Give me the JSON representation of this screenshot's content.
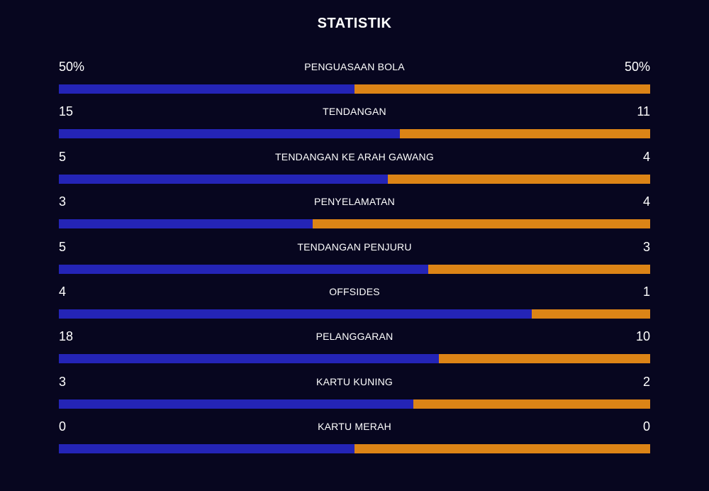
{
  "header": {
    "title": "STATISTIK"
  },
  "colors": {
    "background": "#07061f",
    "home": "#2424b6",
    "away": "#dc8416"
  },
  "stats": [
    {
      "label": "PENGUASAAN BOLA",
      "left": "50%",
      "right": "50%",
      "home_share": 0.5
    },
    {
      "label": "TENDANGAN",
      "left": "15",
      "right": "11",
      "home_share": 0.577
    },
    {
      "label": "TENDANGAN KE ARAH GAWANG",
      "left": "5",
      "right": "4",
      "home_share": 0.556
    },
    {
      "label": "PENYELAMATAN",
      "left": "3",
      "right": "4",
      "home_share": 0.429
    },
    {
      "label": "TENDANGAN PENJURU",
      "left": "5",
      "right": "3",
      "home_share": 0.625
    },
    {
      "label": "OFFSIDES",
      "left": "4",
      "right": "1",
      "home_share": 0.8
    },
    {
      "label": "PELANGGARAN",
      "left": "18",
      "right": "10",
      "home_share": 0.643
    },
    {
      "label": "KARTU KUNING",
      "left": "3",
      "right": "2",
      "home_share": 0.6
    },
    {
      "label": "KARTU MERAH",
      "left": "0",
      "right": "0",
      "home_share": 0.5
    }
  ]
}
